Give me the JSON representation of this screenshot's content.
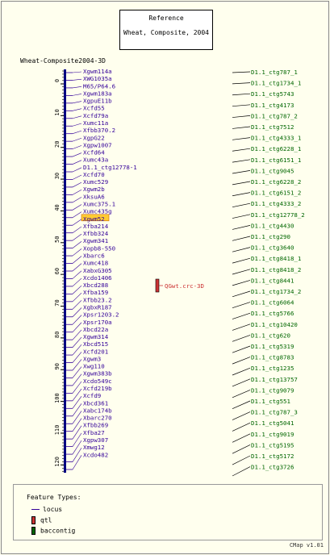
{
  "reference": {
    "title": "Reference",
    "subtitle": "Wheat, Composite, 2004"
  },
  "map_title": "Wheat-Composite2004-3D",
  "axis_ticks": [
    "0",
    "10",
    "20",
    "30",
    "40",
    "50",
    "60",
    "70",
    "80",
    "90",
    "100",
    "110",
    "120"
  ],
  "loci": [
    "Xgwm114a",
    "XWG1035a",
    "M65/P64.6",
    "Xgwm183a",
    "XgpuE11b",
    "Xcfd55",
    "Xcfd79a",
    "Xumc11a",
    "Xfbb370.2",
    "XgpG22",
    "Xgpw1007",
    "Xcfd64",
    "Xumc43a",
    "D1.1_ctg12778-1",
    "Xcfd70",
    "Xumc529",
    "Xgwm2b",
    "XksuA6",
    "Xumc375.1",
    "Xumc435g",
    "Xgwm52",
    "Xfba214",
    "Xfbb324",
    "Xgwm341",
    "Xopb8-550",
    "Xbarc6",
    "Xumc418",
    "XabxG305",
    "Xcdo1406",
    "Xbcd288",
    "Xfba159",
    "Xfbb23.2",
    "XgbxR187",
    "Xpsr1203.2",
    "Xpsr170a",
    "Xbcd22a",
    "Xgwm314",
    "Xbcd515",
    "Xcfd201",
    "Xgwm3",
    "Xwg110",
    "Xgwm383b",
    "Xcdo549c",
    "Xcfd219b",
    "Xcfd9",
    "Xbcd361",
    "Xabc174b",
    "Xbarc270",
    "Xfbb269",
    "Xfba27",
    "Xgpw307",
    "Xmwg12",
    "Xcdo482"
  ],
  "highlighted_locus": "Xgwm52",
  "qtl": {
    "label": "QGwt.crc-3D"
  },
  "contigs": [
    "D1.1_ctg787_1",
    "D1.1_ctg1734_1",
    "D1.1_ctg5743",
    "D1.1_ctg4173",
    "D1.1_ctg787_2",
    "D1.1_ctg7512",
    "D1.1_ctg4333_1",
    "D1.1_ctg6228_1",
    "D1.1_ctg6151_1",
    "D1.1_ctg9045",
    "D1.1_ctg6228_2",
    "D1.1_ctg6151_2",
    "D1.1_ctg4333_2",
    "D1.1_ctg12778_2",
    "D1.1_ctg4430",
    "D1.1_ctg290",
    "D1.1_ctg3640",
    "D1.1_ctg8418_1",
    "D1.1_ctg8418_2",
    "D1.1_ctg8441",
    "D1.1_ctg1734_2",
    "D1.1_ctg6064",
    "D1.1_ctg5766",
    "D1.1_ctg10420",
    "D1.1_ctg620",
    "D1.1_ctg5319",
    "D1.1_ctg8783",
    "D1.1_ctg1235",
    "D1.1_ctg13757",
    "D1.1_ctg9079",
    "D1.1_ctg551",
    "D1.1_ctg787_3",
    "D1.1_ctg5041",
    "D1.1_ctg9019",
    "D1.1_ctg5195",
    "D1.1_ctg5172",
    "D1.1_ctg3726"
  ],
  "legend": {
    "title": "Feature Types:",
    "items": [
      "locus",
      "qtl",
      "baccontig"
    ]
  },
  "version": "CMap v1.01",
  "colors": {
    "locus": "#330099",
    "axis": "#000080",
    "qtl": "#cc3333",
    "contig": "#006600",
    "highlight": "#ffcc33"
  }
}
